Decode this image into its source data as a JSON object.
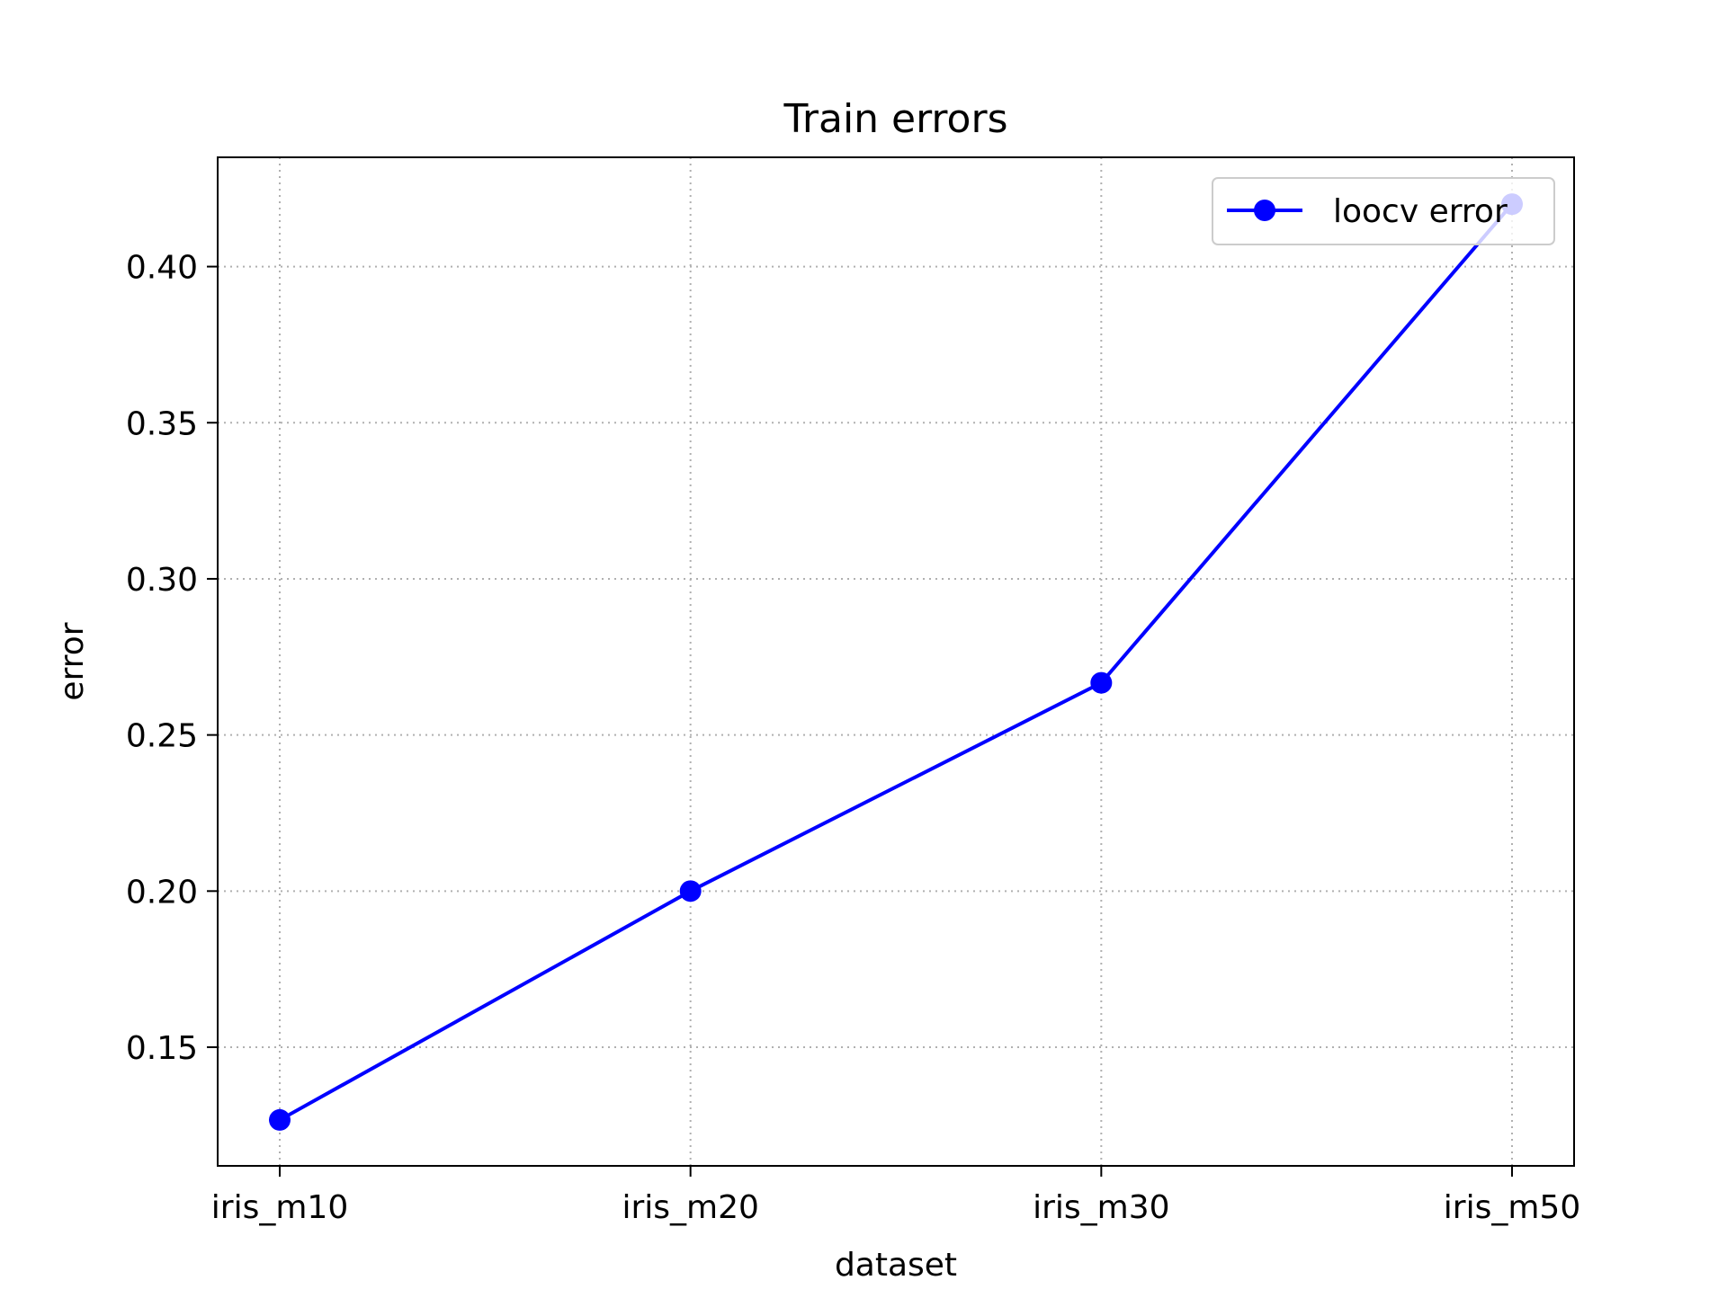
{
  "chart_data": {
    "type": "line",
    "title": "Train errors",
    "xlabel": "dataset",
    "ylabel": "error",
    "categories": [
      "iris_m10",
      "iris_m20",
      "iris_m30",
      "iris_m50"
    ],
    "series": [
      {
        "name": "loocv error",
        "values": [
          0.1267,
          0.2,
          0.2667,
          0.42
        ],
        "color": "#0000ff",
        "marker": "circle"
      }
    ],
    "ylim": [
      0.112,
      0.435
    ],
    "yticks": [
      0.15,
      0.2,
      0.25,
      0.3,
      0.35,
      0.4
    ],
    "ytick_labels": [
      "0.15",
      "0.20",
      "0.25",
      "0.30",
      "0.35",
      "0.40"
    ],
    "grid": true,
    "grid_style": "dotted",
    "legend_position": "top-right"
  }
}
